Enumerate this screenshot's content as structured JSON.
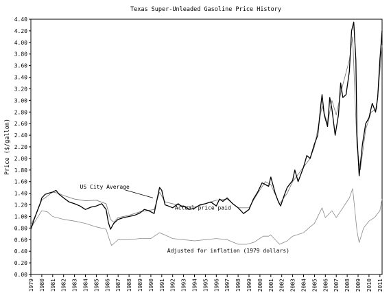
{
  "chart_data": {
    "type": "line",
    "title": "Texas Super-Unleaded Gasoline Price History",
    "ylabel": "Price ($/gallon)",
    "xlabel": "",
    "ylim": [
      0.0,
      4.4
    ],
    "xlim": [
      1979.0,
      2011.2
    ],
    "grid": false,
    "y_ticks": [
      "0.00",
      "0.20",
      "0.40",
      "0.60",
      "0.80",
      "1.00",
      "1.20",
      "1.40",
      "1.60",
      "1.80",
      "2.00",
      "2.20",
      "2.40",
      "2.60",
      "2.80",
      "3.00",
      "3.20",
      "3.40",
      "3.60",
      "3.80",
      "4.00",
      "4.20",
      "4.40"
    ],
    "x_ticks": [
      "1979",
      "1980",
      "1981",
      "1982",
      "1983",
      "1984",
      "1985",
      "1986",
      "1987",
      "1988",
      "1989",
      "1990",
      "1991",
      "1992",
      "1993",
      "1994",
      "1995",
      "1996",
      "1997",
      "1998",
      "1999",
      "2000",
      "2001",
      "2002",
      "2003",
      "2004",
      "2005",
      "2006",
      "2007",
      "2008",
      "2009",
      "2010",
      "2011"
    ],
    "annotations": [
      {
        "text": "US City Average",
        "x": 1983.5,
        "y": 1.48
      },
      {
        "text": "Actual price paid",
        "x": 1992.2,
        "y": 1.12
      },
      {
        "text": "Adjusted for inflation (1979 dollars)",
        "x": 1991.5,
        "y": 0.38
      }
    ],
    "series": [
      {
        "name": "Actual price paid",
        "color": "#000000",
        "x": [
          1979.0,
          1979.3,
          1979.6,
          1979.9,
          1980.0,
          1980.3,
          1980.6,
          1981.0,
          1981.3,
          1981.6,
          1982.0,
          1982.5,
          1983.0,
          1983.5,
          1984.0,
          1984.5,
          1985.0,
          1985.5,
          1985.9,
          1986.1,
          1986.3,
          1986.6,
          1987.0,
          1987.5,
          1988.0,
          1988.5,
          1989.0,
          1989.4,
          1989.8,
          1990.3,
          1990.6,
          1990.8,
          1991.0,
          1991.3,
          1991.6,
          1992.0,
          1992.5,
          1992.9,
          1993.0,
          1993.5,
          1994.0,
          1994.5,
          1995.0,
          1995.5,
          1996.0,
          1996.3,
          1996.6,
          1997.0,
          1997.5,
          1998.0,
          1998.5,
          1999.0,
          1999.4,
          1999.8,
          2000.2,
          2000.5,
          2000.8,
          2001.0,
          2001.4,
          2001.7,
          2001.9,
          2002.2,
          2002.5,
          2003.0,
          2003.2,
          2003.5,
          2004.0,
          2004.3,
          2004.6,
          2005.0,
          2005.3,
          2005.6,
          2005.7,
          2005.9,
          2006.2,
          2006.4,
          2006.6,
          2006.9,
          2007.2,
          2007.4,
          2007.6,
          2007.9,
          2008.2,
          2008.4,
          2008.6,
          2008.8,
          2008.9,
          2009.1,
          2009.4,
          2009.7,
          2010.0,
          2010.3,
          2010.6,
          2010.8,
          2011.0,
          2011.2
        ],
        "values": [
          0.78,
          0.95,
          1.1,
          1.25,
          1.32,
          1.38,
          1.4,
          1.42,
          1.45,
          1.38,
          1.32,
          1.25,
          1.22,
          1.18,
          1.12,
          1.16,
          1.18,
          1.22,
          1.12,
          0.9,
          0.78,
          0.88,
          0.95,
          0.98,
          1.0,
          1.02,
          1.06,
          1.12,
          1.1,
          1.05,
          1.32,
          1.5,
          1.45,
          1.2,
          1.18,
          1.15,
          1.22,
          1.16,
          1.18,
          1.12,
          1.14,
          1.2,
          1.22,
          1.25,
          1.18,
          1.3,
          1.26,
          1.32,
          1.22,
          1.15,
          1.05,
          1.12,
          1.3,
          1.42,
          1.58,
          1.55,
          1.52,
          1.68,
          1.4,
          1.25,
          1.18,
          1.35,
          1.5,
          1.62,
          1.8,
          1.6,
          1.85,
          2.05,
          2.0,
          2.25,
          2.4,
          2.95,
          3.1,
          2.75,
          2.55,
          3.05,
          2.85,
          2.4,
          2.75,
          3.3,
          3.05,
          3.1,
          3.5,
          4.2,
          4.35,
          3.7,
          2.4,
          1.7,
          2.25,
          2.6,
          2.7,
          2.95,
          2.8,
          3.05,
          3.7,
          4.2
        ]
      },
      {
        "name": "US City Average",
        "color": "#7f7f7f",
        "x": [
          1979.0,
          1979.5,
          1980.0,
          1980.5,
          1981.0,
          1981.5,
          1982.0,
          1983.0,
          1984.0,
          1985.0,
          1985.9,
          1986.3,
          1986.6,
          1987.0,
          1988.0,
          1989.0,
          1990.3,
          1990.8,
          1991.3,
          1992.0,
          1993.0,
          1994.0,
          1995.0,
          1996.0,
          1997.0,
          1998.0,
          1999.0,
          1999.8,
          2000.5,
          2001.0,
          2001.8,
          2002.5,
          2003.0,
          2004.0,
          2004.6,
          2005.0,
          2005.7,
          2006.2,
          2006.6,
          2007.0,
          2007.5,
          2008.2,
          2008.5,
          2008.9,
          2009.2,
          2009.7,
          2010.2,
          2010.7,
          2011.0,
          2011.2
        ],
        "values": [
          0.85,
          1.05,
          1.28,
          1.35,
          1.42,
          1.4,
          1.36,
          1.3,
          1.27,
          1.28,
          1.22,
          0.95,
          0.9,
          0.98,
          1.02,
          1.08,
          1.12,
          1.42,
          1.25,
          1.22,
          1.18,
          1.16,
          1.22,
          1.28,
          1.3,
          1.15,
          1.15,
          1.4,
          1.6,
          1.55,
          1.22,
          1.4,
          1.6,
          1.85,
          2.0,
          2.2,
          2.9,
          2.6,
          3.0,
          2.75,
          3.2,
          3.7,
          4.1,
          2.2,
          1.8,
          2.5,
          2.8,
          2.85,
          3.5,
          3.95
        ]
      },
      {
        "name": "Adjusted for inflation (1979 dollars)",
        "color": "#8a8a8a",
        "x": [
          1979.0,
          1979.5,
          1980.0,
          1980.5,
          1981.0,
          1982.0,
          1983.0,
          1984.0,
          1985.0,
          1985.9,
          1986.2,
          1986.4,
          1986.7,
          1987.0,
          1988.0,
          1989.0,
          1990.0,
          1990.8,
          1991.3,
          1992.0,
          1993.0,
          1994.0,
          1995.0,
          1996.0,
          1997.0,
          1997.5,
          1998.0,
          1998.8,
          1999.5,
          2000.3,
          2000.8,
          2001.0,
          2001.8,
          2002.5,
          2003.0,
          2004.0,
          2004.6,
          2005.0,
          2005.7,
          2006.0,
          2006.6,
          2007.0,
          2007.5,
          2008.2,
          2008.5,
          2008.9,
          2009.1,
          2009.5,
          2010.0,
          2010.5,
          2011.0,
          2011.2
        ],
        "values": [
          0.8,
          0.95,
          1.1,
          1.08,
          1.0,
          0.95,
          0.92,
          0.88,
          0.82,
          0.78,
          0.6,
          0.5,
          0.55,
          0.6,
          0.6,
          0.62,
          0.62,
          0.72,
          0.68,
          0.62,
          0.6,
          0.58,
          0.6,
          0.62,
          0.6,
          0.56,
          0.52,
          0.52,
          0.56,
          0.66,
          0.66,
          0.68,
          0.52,
          0.58,
          0.66,
          0.72,
          0.82,
          0.88,
          1.15,
          0.98,
          1.1,
          0.98,
          1.12,
          1.32,
          1.48,
          0.75,
          0.55,
          0.8,
          0.92,
          0.98,
          1.1,
          1.3
        ]
      }
    ]
  }
}
